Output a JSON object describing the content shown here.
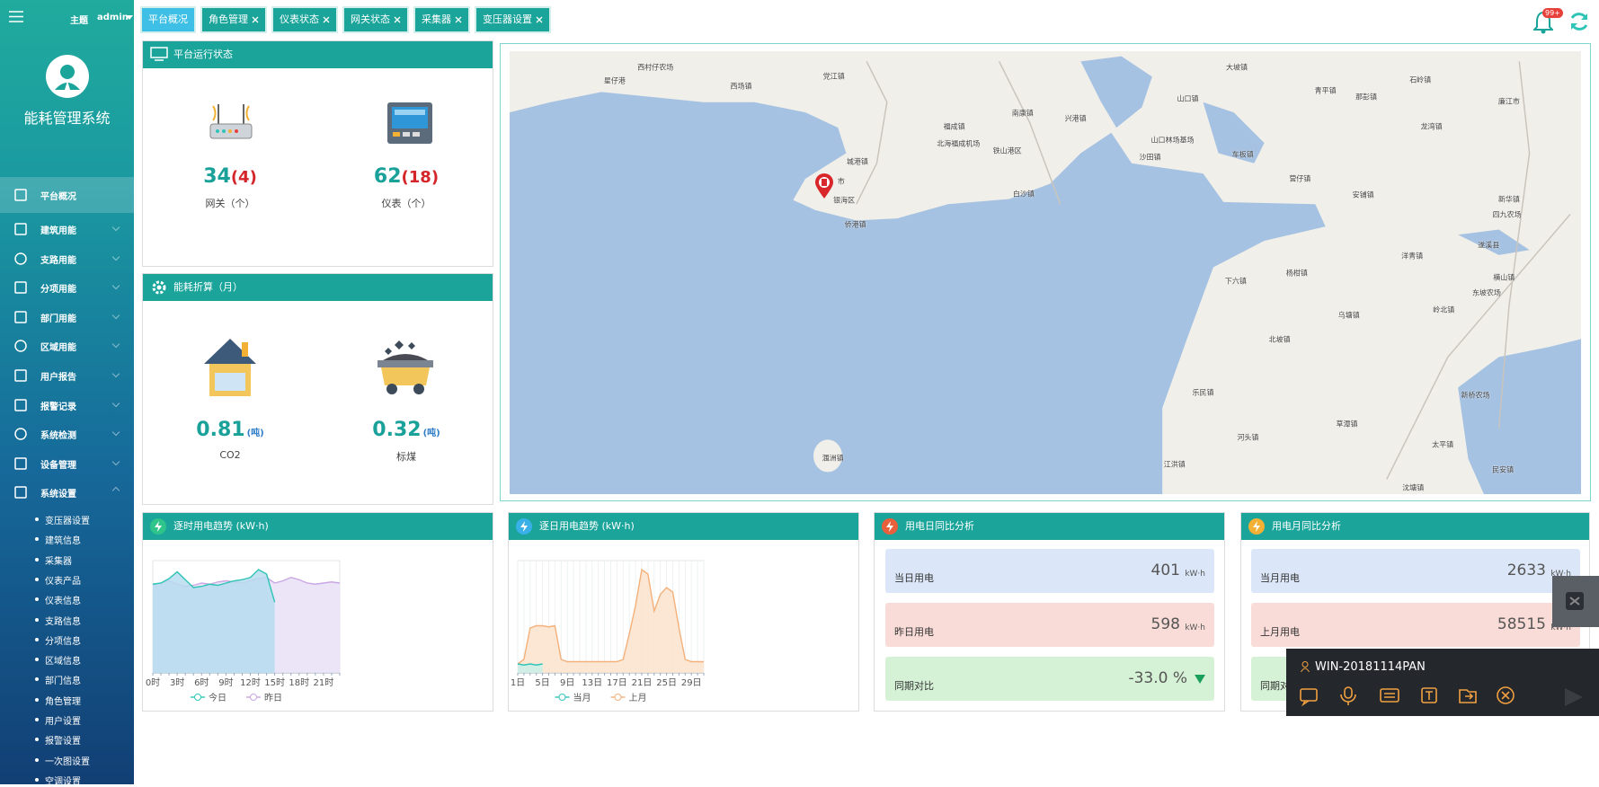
{
  "sidebar": {
    "theme": "主题",
    "user": "admin",
    "title": "能耗管理系统",
    "menu": [
      "平台概况",
      "建筑用能",
      "支路用能",
      "分项用能",
      "部门用能",
      "区域用能",
      "用户报告",
      "报警记录",
      "系统检测",
      "设备管理",
      "系统设置"
    ],
    "submenu": [
      "变压器设置",
      "建筑信息",
      "采集器",
      "仪表产品",
      "仪表信息",
      "支路信息",
      "分项信息",
      "区域信息",
      "部门信息",
      "角色管理",
      "用户设置",
      "报警设置",
      "一次图设置",
      "空调设置"
    ]
  },
  "tabs": [
    "平台概况",
    "角色管理",
    "仪表状态",
    "网关状态",
    "采集器",
    "变压器设置"
  ],
  "notification_badge": "99+",
  "platform_status": {
    "title": "平台运行状态",
    "items": [
      {
        "value": 34,
        "offline": "(4)",
        "label": "网关（个）"
      },
      {
        "value": 62,
        "offline": "(18)",
        "label": "仪表（个）"
      }
    ]
  },
  "energy_conversion": {
    "title": "能耗折算（月）",
    "items": [
      {
        "value": 0.81,
        "unit": "(吨)",
        "label": "CO2"
      },
      {
        "value": 0.32,
        "unit": "(吨)",
        "label": "标煤"
      }
    ]
  },
  "map": {
    "labels": [
      "西村仔农场",
      "星仔港",
      "西场镇",
      "党江镇",
      "大坡镇",
      "石岭镇",
      "青平镇",
      "那彭镇",
      "山口镇",
      "廉江市",
      "南康镇",
      "兴港镇",
      "福成镇",
      "龙湾镇",
      "北海福成机场",
      "铁山港区",
      "山口林场基场",
      "车板镇",
      "沙田镇",
      "城港镇",
      "营仔镇",
      "市",
      "银海区",
      "白沙镇",
      "安铺镇",
      "新华镇",
      "侨港镇",
      "四九农场",
      "遂溪县",
      "洋青镇",
      "横山镇",
      "下六镇",
      "杨柑镇",
      "东坡农场",
      "乌塘镇",
      "岭北镇",
      "北坡镇",
      "乐民镇",
      "新桥农场",
      "草潭镇",
      "河头镇",
      "太平镇",
      "涠洲镇",
      "江洪镇",
      "民安镇",
      "沈塘镇"
    ]
  },
  "charts": [
    {
      "type": "line",
      "title": "逐时用电趋势 (kW·h)",
      "categories": [
        "0时",
        null,
        null,
        "3时",
        null,
        null,
        "6时",
        null,
        null,
        "9时",
        null,
        null,
        "12时",
        null,
        null,
        "15时",
        null,
        null,
        "18时",
        null,
        null,
        "21时",
        null,
        null
      ],
      "series": [
        {
          "name": "今日",
          "color": "#2ec4b6",
          "fill": "#b7dcef",
          "values": [
            79,
            80,
            84,
            90,
            83,
            76,
            77,
            79,
            78,
            80,
            82,
            83,
            85,
            92,
            88,
            63,
            null,
            null,
            null,
            null,
            null,
            null,
            null,
            null
          ]
        },
        {
          "name": "昨日",
          "color": "#c9a6e4",
          "fill": "#e9e1f6",
          "values": [
            78,
            80,
            82,
            79,
            77,
            78,
            80,
            79,
            81,
            82,
            81,
            80,
            82,
            84,
            85,
            80,
            82,
            85,
            83,
            80,
            79,
            80,
            81,
            80
          ]
        }
      ],
      "ylim": [
        0,
        100
      ],
      "area": true
    },
    {
      "type": "line",
      "title": "逐日用电趋势 (kW·h)",
      "categories": [
        "1日",
        null,
        null,
        null,
        "5日",
        null,
        null,
        null,
        "9日",
        null,
        null,
        null,
        "13日",
        null,
        null,
        null,
        "17日",
        null,
        null,
        null,
        "21日",
        null,
        null,
        null,
        "25日",
        null,
        null,
        null,
        "29日",
        null,
        null
      ],
      "series": [
        {
          "name": "当月",
          "color": "#2ec4b6",
          "fill": "#c9efe9",
          "values": [
            8,
            7,
            8,
            7,
            8,
            null,
            null,
            null,
            null,
            null,
            null,
            null,
            null,
            null,
            null,
            null,
            null,
            null,
            null,
            null,
            null,
            null,
            null,
            null,
            null,
            null,
            null,
            null,
            null,
            null,
            null
          ]
        },
        {
          "name": "上月",
          "color": "#f3b07a",
          "fill": "#fbe3cc",
          "values": [
            8,
            12,
            40,
            42,
            42,
            41,
            42,
            12,
            10,
            10,
            10,
            10,
            10,
            10,
            10,
            10,
            10,
            12,
            35,
            60,
            92,
            88,
            55,
            70,
            76,
            72,
            40,
            12,
            10,
            10,
            10
          ]
        }
      ],
      "ylim": [
        0,
        100
      ],
      "area": true,
      "grid": true
    }
  ],
  "daily_comparison": {
    "title": "用电日同比分析",
    "rows": [
      {
        "label": "当日用电",
        "value": 401,
        "unit": "kW·h"
      },
      {
        "label": "昨日用电",
        "value": 598,
        "unit": "kW·h"
      },
      {
        "label": "同期对比",
        "value": "-33.0 %"
      }
    ]
  },
  "monthly_comparison": {
    "title": "用电月同比分析",
    "rows": [
      {
        "label": "当月用电",
        "value": 2633,
        "unit": "kW·h"
      },
      {
        "label": "上月用电",
        "value": 58515,
        "unit": "kW·h"
      },
      {
        "label": "同期对"
      }
    ]
  },
  "remote_toolbar": {
    "host": "WIN-20181114PAN"
  }
}
